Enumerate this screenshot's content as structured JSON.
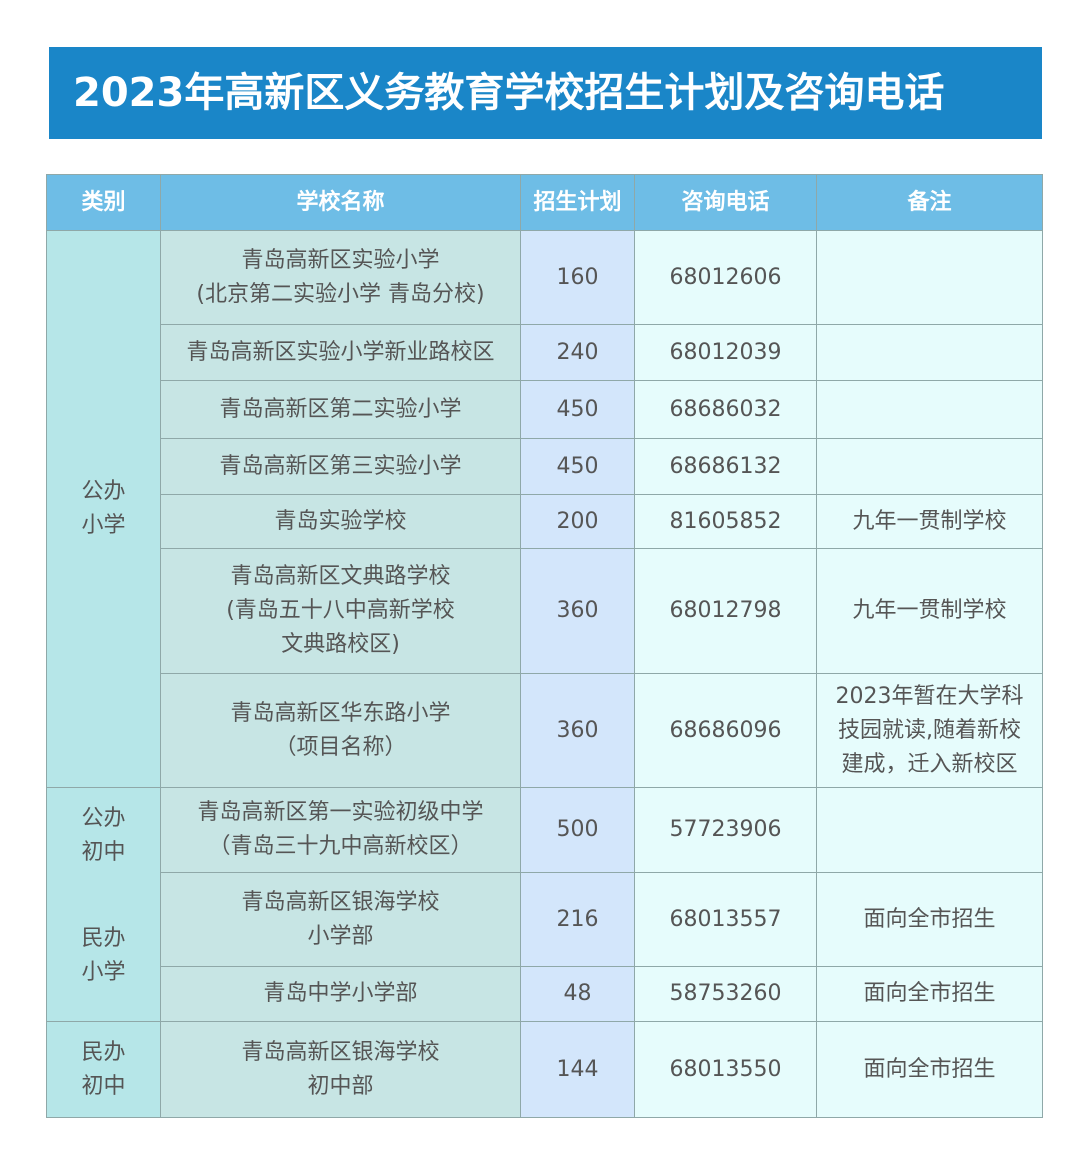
{
  "title": "2023年高新区义务教育学校招生计划及咨询电话",
  "headers": {
    "category": "类别",
    "school": "学校名称",
    "plan": "招生计划",
    "phone": "咨询电话",
    "note": "备注"
  },
  "categories": {
    "public_primary": "公办\n小学",
    "public_middle": "公办\n初中",
    "private_primary": "民办\n小学",
    "private_middle": "民办\n初中"
  },
  "rows": [
    {
      "school": "青岛高新区实验小学\n(北京第二实验小学 青岛分校)",
      "plan": "160",
      "phone": "68012606",
      "note": ""
    },
    {
      "school": "青岛高新区实验小学新业路校区",
      "plan": "240",
      "phone": "68012039",
      "note": ""
    },
    {
      "school": "青岛高新区第二实验小学",
      "plan": "450",
      "phone": "68686032",
      "note": ""
    },
    {
      "school": "青岛高新区第三实验小学",
      "plan": "450",
      "phone": "68686132",
      "note": ""
    },
    {
      "school": "青岛实验学校",
      "plan": "200",
      "phone": "81605852",
      "note": "九年一贯制学校"
    },
    {
      "school": "青岛高新区文典路学校\n(青岛五十八中高新学校\n文典路校区)",
      "plan": "360",
      "phone": "68012798",
      "note": "九年一贯制学校"
    },
    {
      "school": "青岛高新区华东路小学\n（项目名称）",
      "plan": "360",
      "phone": "68686096",
      "note": "2023年暂在大学科\n技园就读,随着新校\n建成，迁入新校区"
    },
    {
      "school": "青岛高新区第一实验初级中学\n（青岛三十九中高新校区）",
      "plan": "500",
      "phone": "57723906",
      "note": ""
    },
    {
      "school": "青岛高新区银海学校\n小学部",
      "plan": "216",
      "phone": "68013557",
      "note": "面向全市招生"
    },
    {
      "school": "青岛中学小学部",
      "plan": "48",
      "phone": "58753260",
      "note": "面向全市招生"
    },
    {
      "school": "青岛高新区银海学校\n初中部",
      "plan": "144",
      "phone": "68013550",
      "note": "面向全市招生"
    }
  ],
  "colors": {
    "title_bg": "#1a86c8",
    "header_bg": "#6ebde6",
    "category_bg": "#b6e6e8",
    "school_bg": "#c7e5e4",
    "plan_bg": "#d3e6fb",
    "phone_bg": "#e6fcfc"
  }
}
